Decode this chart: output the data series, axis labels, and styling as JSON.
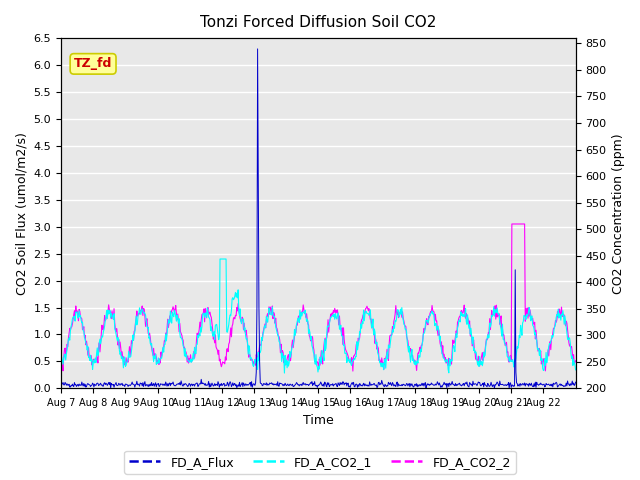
{
  "title": "Tonzi Forced Diffusion Soil CO2",
  "xlabel": "Time",
  "ylabel_left": "CO2 Soil Flux (umol/m2/s)",
  "ylabel_right": "CO2 Concentration (ppm)",
  "ylim_left": [
    0.0,
    6.5
  ],
  "ylim_right": [
    200,
    860
  ],
  "yticks_left": [
    0.0,
    0.5,
    1.0,
    1.5,
    2.0,
    2.5,
    3.0,
    3.5,
    4.0,
    4.5,
    5.0,
    5.5,
    6.0,
    6.5
  ],
  "yticks_right": [
    200,
    250,
    300,
    350,
    400,
    450,
    500,
    550,
    600,
    650,
    700,
    750,
    800,
    850
  ],
  "color_flux": "#0000cc",
  "color_co2_1": "#00ffff",
  "color_co2_2": "#ff00ff",
  "legend_entries": [
    "FD_A_Flux",
    "FD_A_CO2_1",
    "FD_A_CO2_2"
  ],
  "label_box_text": "TZ_fd",
  "label_box_facecolor": "#ffff99",
  "label_box_edgecolor": "#cccc00",
  "label_box_text_color": "#cc0000",
  "x_tick_labels": [
    "Aug 7",
    "Aug 8",
    "Aug 9",
    "Aug 10",
    "Aug 11",
    "Aug 12",
    "Aug 13",
    "Aug 14",
    "Aug 15",
    "Aug 16",
    "Aug 17",
    "Aug 18",
    "Aug 19",
    "Aug 20",
    "Aug 21",
    "Aug 22"
  ],
  "n_days": 16,
  "samples_per_day": 48,
  "ax_background": "#e8e8e8",
  "fig_background": "#ffffff",
  "grid_color": "#ffffff",
  "title_fontsize": 11,
  "axis_label_fontsize": 9,
  "tick_fontsize": 8,
  "xtick_fontsize": 7,
  "legend_fontsize": 9
}
